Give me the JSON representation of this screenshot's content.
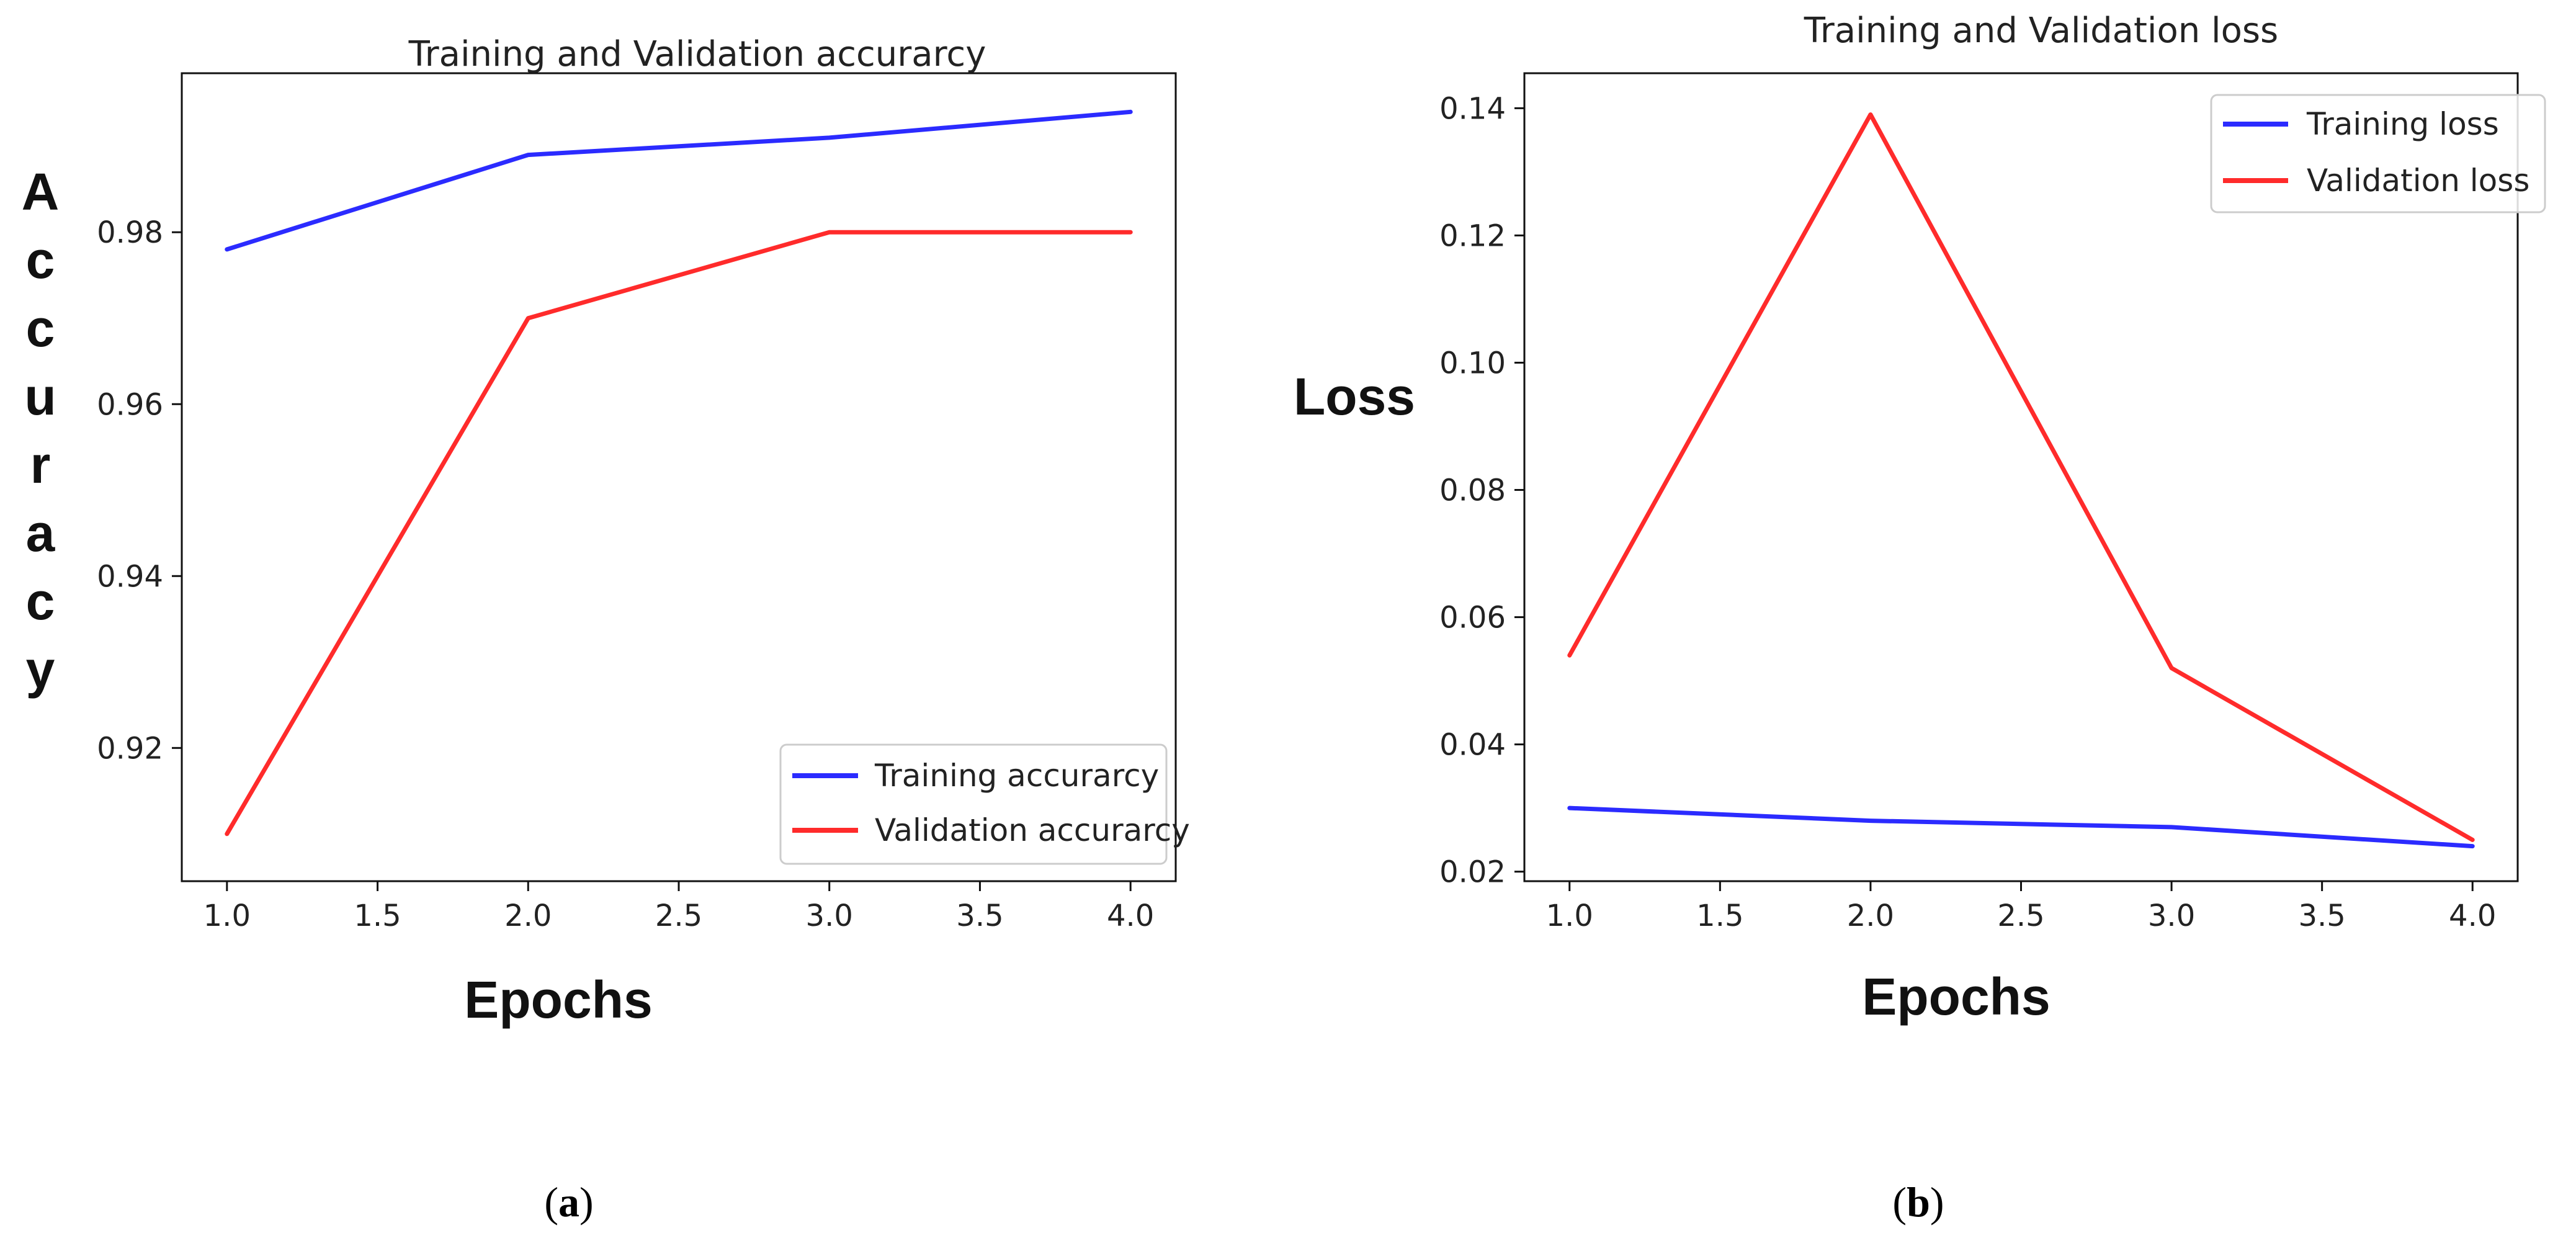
{
  "chart_data": [
    {
      "id": "a",
      "type": "line",
      "title": "Training and Validation accurarcy",
      "xlabel": "Epochs",
      "ylabel": "Accuracy",
      "x": [
        1.0,
        2.0,
        3.0,
        4.0
      ],
      "xlim": [
        0.85,
        4.15
      ],
      "ylim": [
        0.9045,
        0.9985
      ],
      "xticks": [
        1.0,
        1.5,
        2.0,
        2.5,
        3.0,
        3.5,
        4.0
      ],
      "xtick_labels": [
        "1.0",
        "1.5",
        "2.0",
        "2.5",
        "3.0",
        "3.5",
        "4.0"
      ],
      "yticks": [
        0.92,
        0.94,
        0.96,
        0.98
      ],
      "ytick_labels": [
        "0.92",
        "0.94",
        "0.96",
        "0.98"
      ],
      "grid": false,
      "legend_position": "lower-right",
      "series": [
        {
          "name": "Training accurarcy",
          "color": "#2b2bff",
          "values": [
            0.978,
            0.989,
            0.991,
            0.994
          ]
        },
        {
          "name": "Validation accurarcy",
          "color": "#ff2b2b",
          "values": [
            0.91,
            0.97,
            0.98,
            0.98
          ]
        }
      ],
      "caption": {
        "open": "(",
        "letter": "a",
        "close": ")"
      }
    },
    {
      "id": "b",
      "type": "line",
      "title": "Training and Validation loss",
      "xlabel": "Epochs",
      "ylabel": "Loss",
      "x": [
        1.0,
        2.0,
        3.0,
        4.0
      ],
      "xlim": [
        0.85,
        4.15
      ],
      "ylim": [
        0.0185,
        0.1455
      ],
      "xticks": [
        1.0,
        1.5,
        2.0,
        2.5,
        3.0,
        3.5,
        4.0
      ],
      "xtick_labels": [
        "1.0",
        "1.5",
        "2.0",
        "2.5",
        "3.0",
        "3.5",
        "4.0"
      ],
      "yticks": [
        0.02,
        0.04,
        0.06,
        0.08,
        0.1,
        0.12,
        0.14
      ],
      "ytick_labels": [
        "0.02",
        "0.04",
        "0.06",
        "0.08",
        "0.10",
        "0.12",
        "0.14"
      ],
      "grid": false,
      "legend_position": "upper-right",
      "series": [
        {
          "name": "Training loss",
          "color": "#2b2bff",
          "values": [
            0.03,
            0.028,
            0.027,
            0.024
          ]
        },
        {
          "name": "Validation loss",
          "color": "#ff2b2b",
          "values": [
            0.054,
            0.139,
            0.052,
            0.025
          ]
        }
      ],
      "caption": {
        "open": "(",
        "letter": "b",
        "close": ")"
      }
    }
  ]
}
